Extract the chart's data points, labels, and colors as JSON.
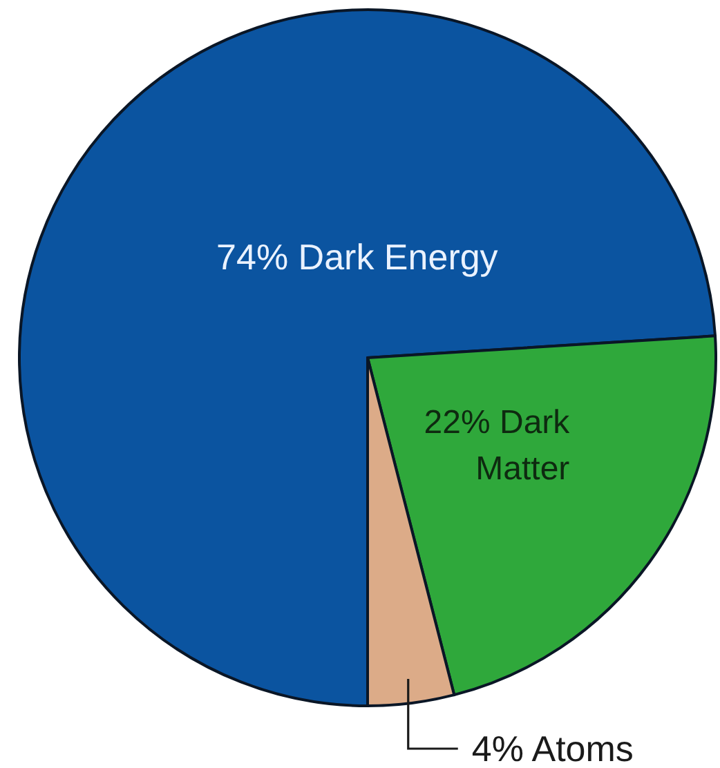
{
  "chart_data": {
    "type": "pie",
    "categories": [
      "Dark Energy",
      "Dark Matter",
      "Atoms"
    ],
    "values": [
      74,
      22,
      4
    ],
    "value_labels": [
      "74%",
      "22%",
      "4%"
    ],
    "colors": [
      "#0b54a0",
      "#2fa83b",
      "#dcab88"
    ]
  }
}
